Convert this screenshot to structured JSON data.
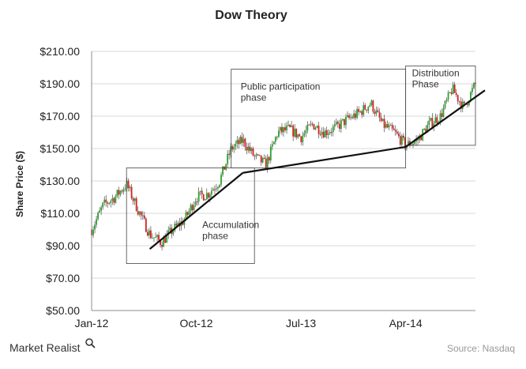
{
  "chart_data": {
    "type": "line",
    "title": "Dow Theory",
    "ylabel": "Share Price ($)",
    "xlabel": "",
    "ylim": [
      50,
      210
    ],
    "y_ticks": [
      "$50.00",
      "$70.00",
      "$90.00",
      "$110.00",
      "$130.00",
      "$150.00",
      "$170.00",
      "$190.00",
      "$210.00"
    ],
    "y_tick_values": [
      50,
      70,
      90,
      110,
      130,
      150,
      170,
      190,
      210
    ],
    "x_ticks": [
      "Jan-12",
      "Oct-12",
      "Jul-13",
      "Apr-14"
    ],
    "x_tick_values": [
      "2012-01",
      "2012-10",
      "2013-07",
      "2014-04"
    ],
    "xlim": [
      "2012-01",
      "2014-10"
    ],
    "grid": "horizontal",
    "candle_colors": {
      "up": "#2ea02e",
      "down": "#d42020"
    },
    "series": [
      {
        "x": [
          "2012-01",
          "2012-02",
          "2012-03",
          "2012-04",
          "2012-05",
          "2012-06",
          "2012-07",
          "2012-08",
          "2012-09",
          "2012-10",
          "2012-11",
          "2012-12",
          "2013-01",
          "2013-02",
          "2013-03",
          "2013-04",
          "2013-05",
          "2013-06",
          "2013-07",
          "2013-08",
          "2013-09",
          "2013-10",
          "2013-11",
          "2013-12",
          "2014-01",
          "2014-02",
          "2014-03",
          "2014-04",
          "2014-05",
          "2014-06",
          "2014-07",
          "2014-08",
          "2014-09",
          "2014-10"
        ],
        "values": [
          100,
          115,
          120,
          128,
          112,
          97,
          92,
          100,
          106,
          120,
          122,
          130,
          150,
          155,
          145,
          140,
          160,
          162,
          157,
          165,
          160,
          163,
          168,
          172,
          178,
          165,
          160,
          152,
          155,
          165,
          170,
          187,
          175,
          190
        ]
      }
    ],
    "trendlines": [
      {
        "from": [
          "2012-06",
          88
        ],
        "to": [
          "2013-02",
          135
        ]
      },
      {
        "from": [
          "2013-02",
          135
        ],
        "to": [
          "2014-04",
          151
        ]
      },
      {
        "from": [
          "2014-04",
          151
        ],
        "to": [
          "2014-10",
          184
        ]
      }
    ],
    "annotations": [
      {
        "text": [
          "Accumulation",
          "phase"
        ],
        "box": {
          "x": [
            "2012-04",
            "2013-03"
          ],
          "y": [
            79,
            138
          ]
        }
      },
      {
        "text": [
          "Public participation",
          "phase"
        ],
        "box": {
          "x": [
            "2013-01",
            "2014-04"
          ],
          "y": [
            138,
            199
          ]
        }
      },
      {
        "text": [
          "Distribution",
          "Phase"
        ],
        "box": {
          "x": [
            "2014-04",
            "2014-10"
          ],
          "y": [
            152,
            201
          ]
        }
      }
    ]
  },
  "footer": {
    "brand": "Market Realist",
    "source": "Source: Nasdaq"
  }
}
